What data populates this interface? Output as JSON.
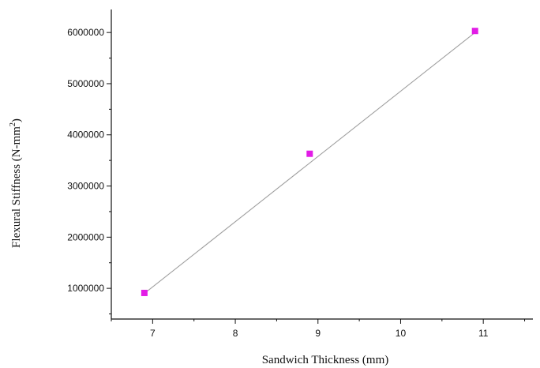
{
  "chart_data": {
    "type": "scatter",
    "xlabel": "Sandwich Thickness (mm)",
    "ylabel_main": "Flexural Stiffness (N-mm",
    "ylabel_sup": "2",
    "ylabel_end": ")",
    "xlim": [
      6.5,
      11.6
    ],
    "ylim": [
      400000,
      6450000
    ],
    "xticks": [
      7,
      8,
      9,
      10,
      11
    ],
    "xtick_labels": [
      "7",
      "8",
      "9",
      "10",
      "11"
    ],
    "yticks": [
      1000000,
      2000000,
      3000000,
      4000000,
      5000000,
      6000000
    ],
    "ytick_labels": [
      "1000000",
      "2000000",
      "3000000",
      "4000000",
      "5000000",
      "6000000"
    ],
    "series": [
      {
        "x": [
          6.9,
          8.9,
          10.9
        ],
        "y": [
          910000,
          3630000,
          6030000
        ],
        "marker": "square",
        "color": "#e21ce6"
      }
    ],
    "trendline": {
      "x": [
        6.9,
        10.9
      ],
      "y": [
        900000,
        6000000
      ],
      "color": "#a0a0a0"
    },
    "grid": false
  }
}
